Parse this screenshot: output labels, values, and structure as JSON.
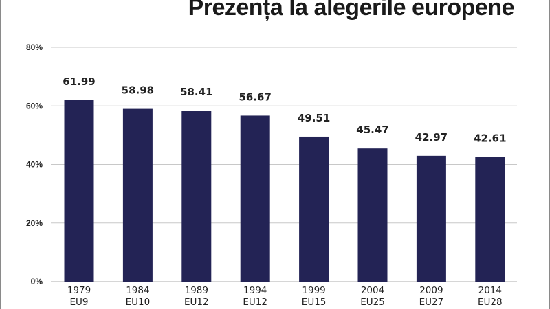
{
  "title": "Prezența la alegerile europene",
  "chart_data": {
    "type": "bar",
    "title": "Prezența la alegerile europene",
    "categories": [
      "1979",
      "1984",
      "1989",
      "1994",
      "1999",
      "2004",
      "2009",
      "2014"
    ],
    "sublabels": [
      "EU9",
      "EU10",
      "EU12",
      "EU12",
      "EU15",
      "EU25",
      "EU27",
      "EU28"
    ],
    "values": [
      61.99,
      58.98,
      58.41,
      56.67,
      49.51,
      45.47,
      42.97,
      42.61
    ],
    "value_labels": [
      "61.99",
      "58.98",
      "58.41",
      "56.67",
      "49.51",
      "45.47",
      "42.97",
      "42.61"
    ],
    "ylim": [
      0,
      80
    ],
    "yticks": [
      0,
      20,
      40,
      60,
      80
    ],
    "ytick_labels": [
      "0%",
      "20%",
      "40%",
      "60%",
      "80%"
    ],
    "xlabel": "",
    "ylabel": "",
    "grid": true,
    "bar_color": "#232355",
    "grid_color": "#c8c8c8"
  }
}
